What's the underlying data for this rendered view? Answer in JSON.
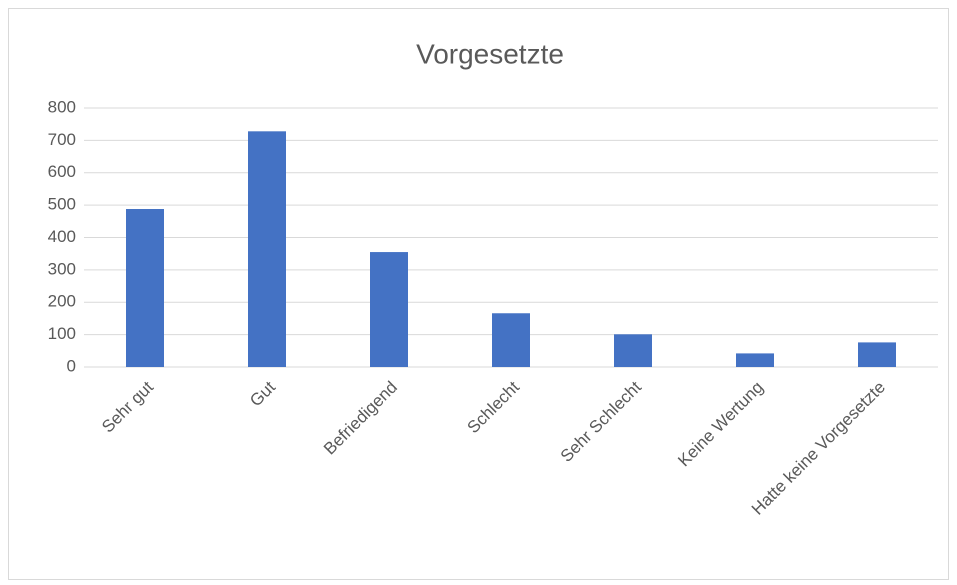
{
  "chart_data": {
    "type": "bar",
    "title": "Vorgesetzte",
    "categories": [
      "Sehr gut",
      "Gut",
      "Befriedigend",
      "Schlecht",
      "Sehr Schlecht",
      "Keine Wertung",
      "Hatte keine Vorgesetzte"
    ],
    "values": [
      488,
      728,
      355,
      166,
      101,
      42,
      76
    ],
    "color": "#4472c4",
    "ylim": [
      0,
      800
    ],
    "yticks": [
      0,
      100,
      200,
      300,
      400,
      500,
      600,
      700,
      800
    ],
    "grid": true
  }
}
